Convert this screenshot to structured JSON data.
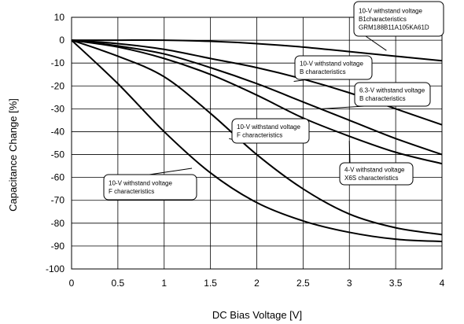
{
  "chart_data": {
    "type": "line",
    "xlabel": "DC Bias Voltage [V]",
    "ylabel": "Capacitance Change [%]",
    "xlim": [
      0,
      4
    ],
    "ylim": [
      -100,
      10
    ],
    "xticks": [
      "0",
      "0.5",
      "1",
      "1.5",
      "2",
      "2.5",
      "3",
      "3.5",
      "4"
    ],
    "yticks": [
      "10",
      "0",
      "-10",
      "-20",
      "-30",
      "-40",
      "-50",
      "-60",
      "-70",
      "-80",
      "-90",
      "-100"
    ],
    "grid": true,
    "series": [
      {
        "x": [
          0,
          0.5,
          1,
          1.5,
          2,
          2.5,
          3,
          3.5,
          4
        ],
        "y": [
          0,
          0,
          0,
          -0.5,
          -1.5,
          -3,
          -5,
          -7,
          -9
        ]
      },
      {
        "x": [
          0,
          0.5,
          1,
          1.5,
          2,
          2.5,
          3,
          3.5,
          4
        ],
        "y": [
          0,
          -1.5,
          -4,
          -8,
          -12,
          -17,
          -23,
          -30,
          -37
        ]
      },
      {
        "x": [
          0,
          0.5,
          1,
          1.5,
          2,
          2.5,
          3,
          3.5,
          4
        ],
        "y": [
          0,
          -2.5,
          -6,
          -12,
          -19,
          -27,
          -35,
          -43,
          -50
        ]
      },
      {
        "x": [
          0,
          0.5,
          1,
          1.5,
          2,
          2.5,
          3,
          3.5,
          4
        ],
        "y": [
          0,
          -3,
          -8,
          -15,
          -24,
          -34,
          -42,
          -49,
          -54
        ]
      },
      {
        "x": [
          0,
          0.5,
          1,
          1.5,
          2,
          2.5,
          3,
          3.5,
          4
        ],
        "y": [
          0,
          -7,
          -16,
          -32,
          -50,
          -65,
          -76,
          -82,
          -85
        ]
      },
      {
        "x": [
          0,
          0.5,
          1,
          1.5,
          2,
          2.5,
          3,
          3.5,
          4
        ],
        "y": [
          0,
          -19,
          -40,
          -58,
          -71,
          -79,
          -84,
          -87,
          -88
        ]
      }
    ],
    "annotations": [
      {
        "lines": [
          "10-V withstand voltage",
          "B1characteristics",
          "GRM188B11A105KA61D"
        ],
        "points_to": {
          "x": 3.4,
          "y": -4.5
        }
      },
      {
        "lines": [
          "10-V withstand voltage",
          "B characteristics"
        ],
        "points_to": {
          "x": 2.4,
          "y": -18
        }
      },
      {
        "lines": [
          "6.3-V withstand voltage",
          "B characteristics"
        ],
        "points_to": {
          "x": 2.7,
          "y": -30
        }
      },
      {
        "lines": [
          "10-V withstand voltage",
          "F characteristics"
        ],
        "points_to": {
          "x": 1.7,
          "y": -43
        }
      },
      {
        "lines": [
          "4-V withstand voltage",
          "X6S characteristics"
        ],
        "points_to": {
          "x": 3.0,
          "y": -44
        }
      },
      {
        "lines": [
          "10-V withstand voltage",
          "F characteristics"
        ],
        "points_to": {
          "x": 1.3,
          "y": -56
        }
      }
    ]
  }
}
